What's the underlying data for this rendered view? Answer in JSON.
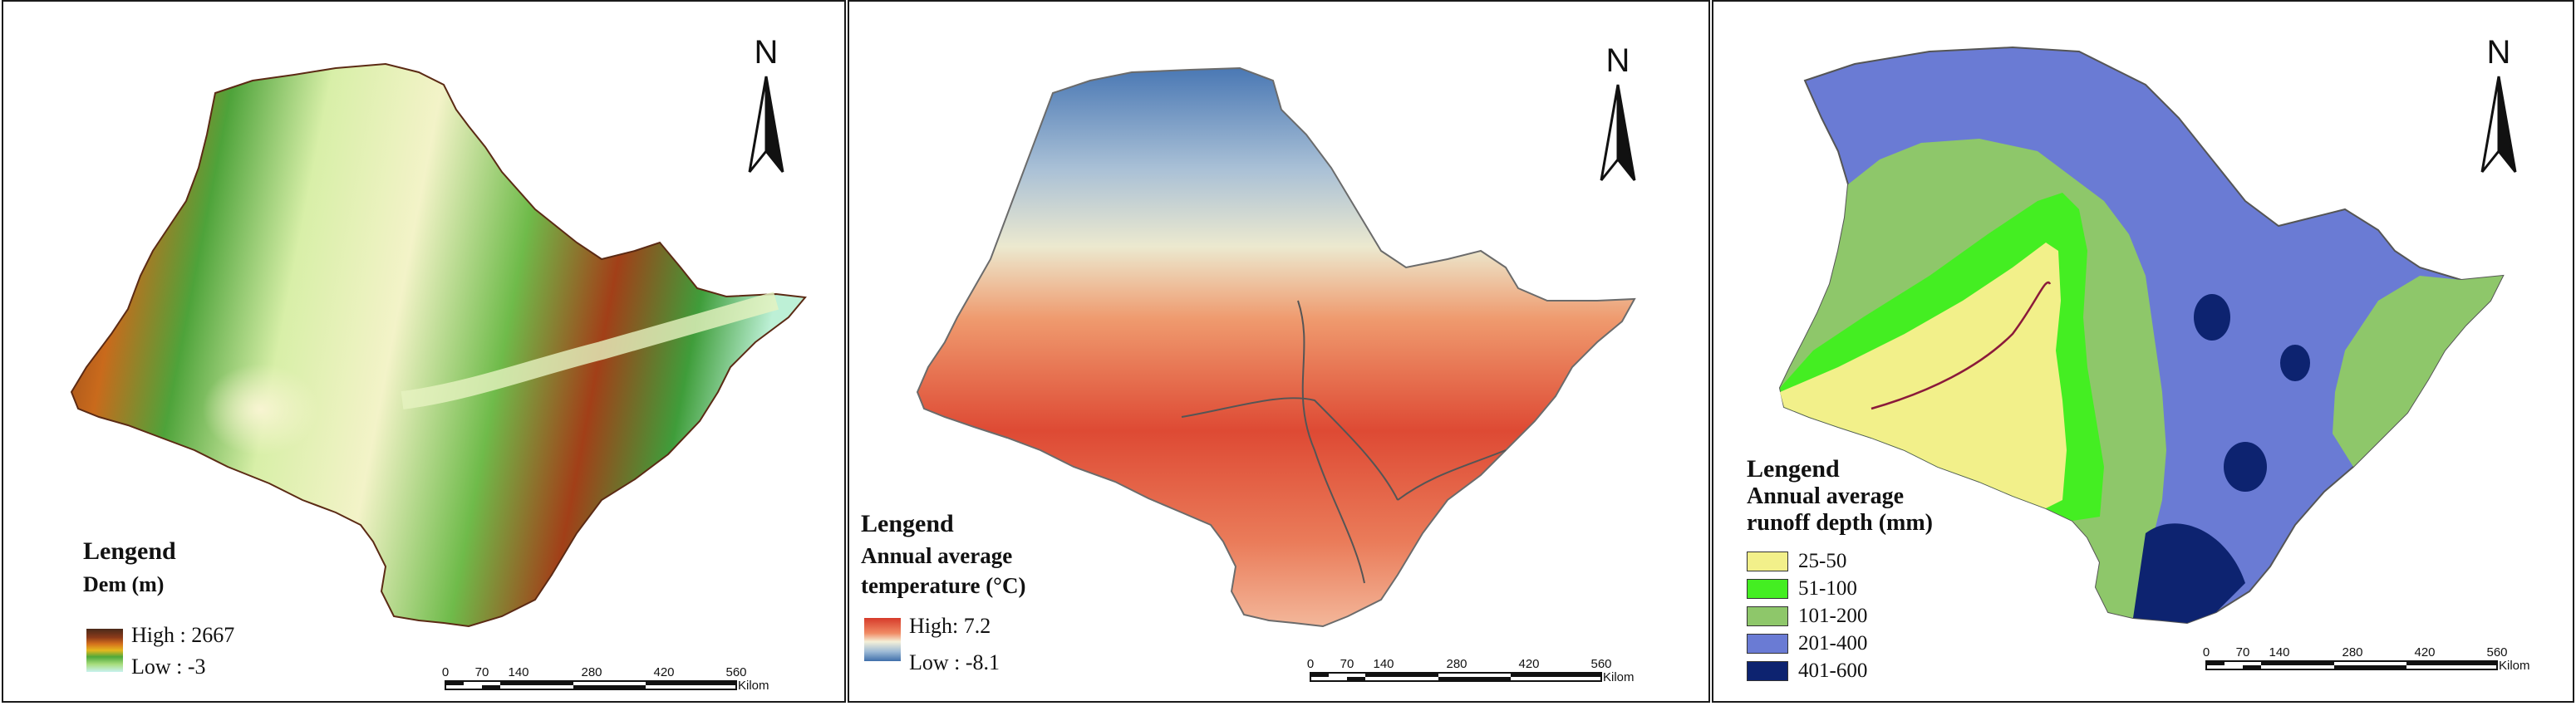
{
  "panels": [
    {
      "legend_title": "Lengend",
      "legend_subtitle": "Dem (m)",
      "high_label": "High : 2667",
      "low_label": "Low : -3",
      "ramp_colors": [
        "#4a2a1a",
        "#8b3a1a",
        "#d4701c",
        "#e6b81f",
        "#4fa83a",
        "#a8dd7c",
        "#f2f2c6"
      ],
      "north": "N",
      "scale_ticks": [
        "0",
        "70",
        "140",
        "280",
        "420",
        "560"
      ],
      "scale_unit": "Kilometers"
    },
    {
      "legend_title": "Lengend",
      "legend_subtitle": "Annual average temperature (°C)",
      "subtitle_line1": "Annual average",
      "subtitle_line2": "temperature (°C)",
      "high_label": "High: 7.2",
      "low_label": "Low : -8.1",
      "ramp_colors": [
        "#d63a2a",
        "#f08a64",
        "#f4f0d8",
        "#9dbad6",
        "#3f6faa"
      ],
      "north": "N",
      "scale_ticks": [
        "0",
        "70",
        "140",
        "280",
        "420",
        "560"
      ],
      "scale_unit": "Kilometers"
    },
    {
      "legend_title": "Lengend",
      "subtitle_line1": "Annual average",
      "subtitle_line2": "runoff depth (mm)",
      "classes": [
        {
          "label": "25-50",
          "color": "#f2f08a"
        },
        {
          "label": "51-100",
          "color": "#44ee22"
        },
        {
          "label": "101-200",
          "color": "#8ec76a"
        },
        {
          "label": "201-400",
          "color": "#6a7bd4"
        },
        {
          "label": "401-600",
          "color": "#0d2370"
        }
      ],
      "north": "N",
      "scale_ticks": [
        "0",
        "70",
        "140",
        "280",
        "420",
        "560"
      ],
      "scale_unit": "Kilometers"
    }
  ]
}
